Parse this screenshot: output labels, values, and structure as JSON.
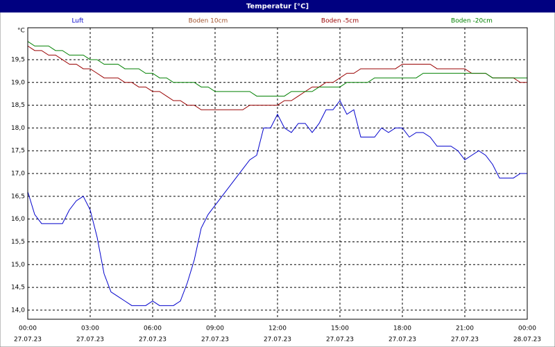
{
  "chart_data": {
    "type": "line",
    "title": "Temperatur [°C]",
    "y_label": "°C",
    "x": [
      0,
      20,
      40,
      60,
      80,
      100,
      120,
      140,
      160,
      180,
      200,
      220,
      240,
      260,
      280,
      300,
      320,
      340,
      360,
      380,
      400,
      420,
      440,
      460,
      480,
      500,
      520,
      540,
      560,
      580,
      600,
      620,
      640,
      660,
      680,
      700,
      720,
      740,
      760,
      780,
      800,
      820,
      840,
      860,
      880,
      900,
      920,
      940,
      960,
      980,
      1000,
      1020,
      1040,
      1060,
      1080,
      1100,
      1120,
      1140,
      1160,
      1180,
      1200,
      1220,
      1240,
      1260,
      1280,
      1300,
      1320,
      1340,
      1360,
      1380,
      1400,
      1420,
      1440
    ],
    "xlim": [
      0,
      1440
    ],
    "xticks": [
      {
        "value": 0,
        "label": "00:00"
      },
      {
        "value": 180,
        "label": "03:00"
      },
      {
        "value": 360,
        "label": "06:00"
      },
      {
        "value": 540,
        "label": "09:00"
      },
      {
        "value": 720,
        "label": "12:00"
      },
      {
        "value": 900,
        "label": "15:00"
      },
      {
        "value": 1080,
        "label": "18:00"
      },
      {
        "value": 1260,
        "label": "21:00"
      },
      {
        "value": 1440,
        "label": "00:00"
      }
    ],
    "xtick_dates": [
      "27.07.23",
      "27.07.23",
      "27.07.23",
      "27.07.23",
      "27.07.23",
      "27.07.23",
      "27.07.23",
      "27.07.23",
      "28.07.23"
    ],
    "ylim": [
      13.8,
      20.2
    ],
    "yticks": [
      {
        "value": 14.0,
        "label": "14,0"
      },
      {
        "value": 14.5,
        "label": "14,5"
      },
      {
        "value": 15.0,
        "label": "15,0"
      },
      {
        "value": 15.5,
        "label": "15,5"
      },
      {
        "value": 16.0,
        "label": "16,0"
      },
      {
        "value": 16.5,
        "label": "16,5"
      },
      {
        "value": 17.0,
        "label": "17,0"
      },
      {
        "value": 17.5,
        "label": "17,5"
      },
      {
        "value": 18.0,
        "label": "18,0"
      },
      {
        "value": 18.5,
        "label": "18,5"
      },
      {
        "value": 19.0,
        "label": "19,0"
      },
      {
        "value": 19.5,
        "label": "19,5"
      }
    ],
    "grid": true,
    "series": [
      {
        "name": "Luft",
        "color": "#0000cc",
        "values": [
          16.6,
          16.1,
          15.9,
          15.9,
          15.9,
          15.9,
          16.2,
          16.4,
          16.5,
          16.2,
          15.6,
          14.8,
          14.4,
          14.3,
          14.2,
          14.1,
          14.1,
          14.1,
          14.2,
          14.1,
          14.1,
          14.1,
          14.2,
          14.6,
          15.1,
          15.8,
          16.1,
          16.3,
          16.5,
          16.7,
          16.9,
          17.1,
          17.3,
          17.4,
          18.0,
          18.0,
          18.3,
          18.0,
          17.9,
          18.1,
          18.1,
          17.9,
          18.1,
          18.4,
          18.4,
          18.6,
          18.3,
          18.4,
          17.8,
          17.8,
          17.8,
          18.0,
          17.9,
          18.0,
          18.0,
          17.8,
          17.9,
          17.9,
          17.8,
          17.6,
          17.6,
          17.6,
          17.5,
          17.3,
          17.4,
          17.5,
          17.4,
          17.2,
          16.9,
          16.9,
          16.9,
          17.0,
          17.0
        ]
      },
      {
        "name": "Boden 10cm",
        "color": "#a0522d",
        "values": [
          null,
          null,
          null,
          null,
          null,
          null,
          null,
          null,
          null,
          null,
          null,
          null,
          null,
          null,
          null,
          null,
          null,
          null,
          null,
          null,
          null,
          null,
          null,
          null,
          null,
          null,
          null,
          null,
          null,
          null,
          null,
          null,
          null,
          null,
          null,
          null,
          null,
          null,
          null,
          null,
          null,
          null,
          null,
          null,
          null,
          null,
          null,
          null,
          null,
          null,
          null,
          null,
          null,
          null,
          null,
          null,
          null,
          null,
          null,
          null,
          null,
          null,
          null,
          null,
          null,
          null,
          null,
          null,
          null,
          null,
          null,
          null,
          null
        ]
      },
      {
        "name": "Boden -5cm",
        "color": "#990000",
        "values": [
          19.8,
          19.7,
          19.7,
          19.6,
          19.6,
          19.5,
          19.4,
          19.4,
          19.3,
          19.3,
          19.2,
          19.1,
          19.1,
          19.1,
          19.0,
          19.0,
          18.9,
          18.9,
          18.8,
          18.8,
          18.7,
          18.6,
          18.6,
          18.5,
          18.5,
          18.4,
          18.4,
          18.4,
          18.4,
          18.4,
          18.4,
          18.4,
          18.5,
          18.5,
          18.5,
          18.5,
          18.5,
          18.6,
          18.6,
          18.7,
          18.8,
          18.9,
          18.9,
          19.0,
          19.0,
          19.1,
          19.2,
          19.2,
          19.3,
          19.3,
          19.3,
          19.3,
          19.3,
          19.3,
          19.4,
          19.4,
          19.4,
          19.4,
          19.4,
          19.3,
          19.3,
          19.3,
          19.3,
          19.3,
          19.2,
          19.2,
          19.2,
          19.1,
          19.1,
          19.1,
          19.1,
          19.0,
          19.0
        ]
      },
      {
        "name": "Boden -20cm",
        "color": "#008000",
        "values": [
          19.9,
          19.8,
          19.8,
          19.8,
          19.7,
          19.7,
          19.6,
          19.6,
          19.6,
          19.5,
          19.5,
          19.4,
          19.4,
          19.4,
          19.3,
          19.3,
          19.3,
          19.2,
          19.2,
          19.1,
          19.1,
          19.0,
          19.0,
          19.0,
          19.0,
          18.9,
          18.9,
          18.8,
          18.8,
          18.8,
          18.8,
          18.8,
          18.8,
          18.7,
          18.7,
          18.7,
          18.7,
          18.7,
          18.8,
          18.8,
          18.8,
          18.8,
          18.9,
          18.9,
          18.9,
          18.9,
          19.0,
          19.0,
          19.0,
          19.0,
          19.1,
          19.1,
          19.1,
          19.1,
          19.1,
          19.1,
          19.1,
          19.2,
          19.2,
          19.2,
          19.2,
          19.2,
          19.2,
          19.2,
          19.2,
          19.2,
          19.2,
          19.1,
          19.1,
          19.1,
          19.1,
          19.1,
          19.1
        ]
      }
    ]
  }
}
